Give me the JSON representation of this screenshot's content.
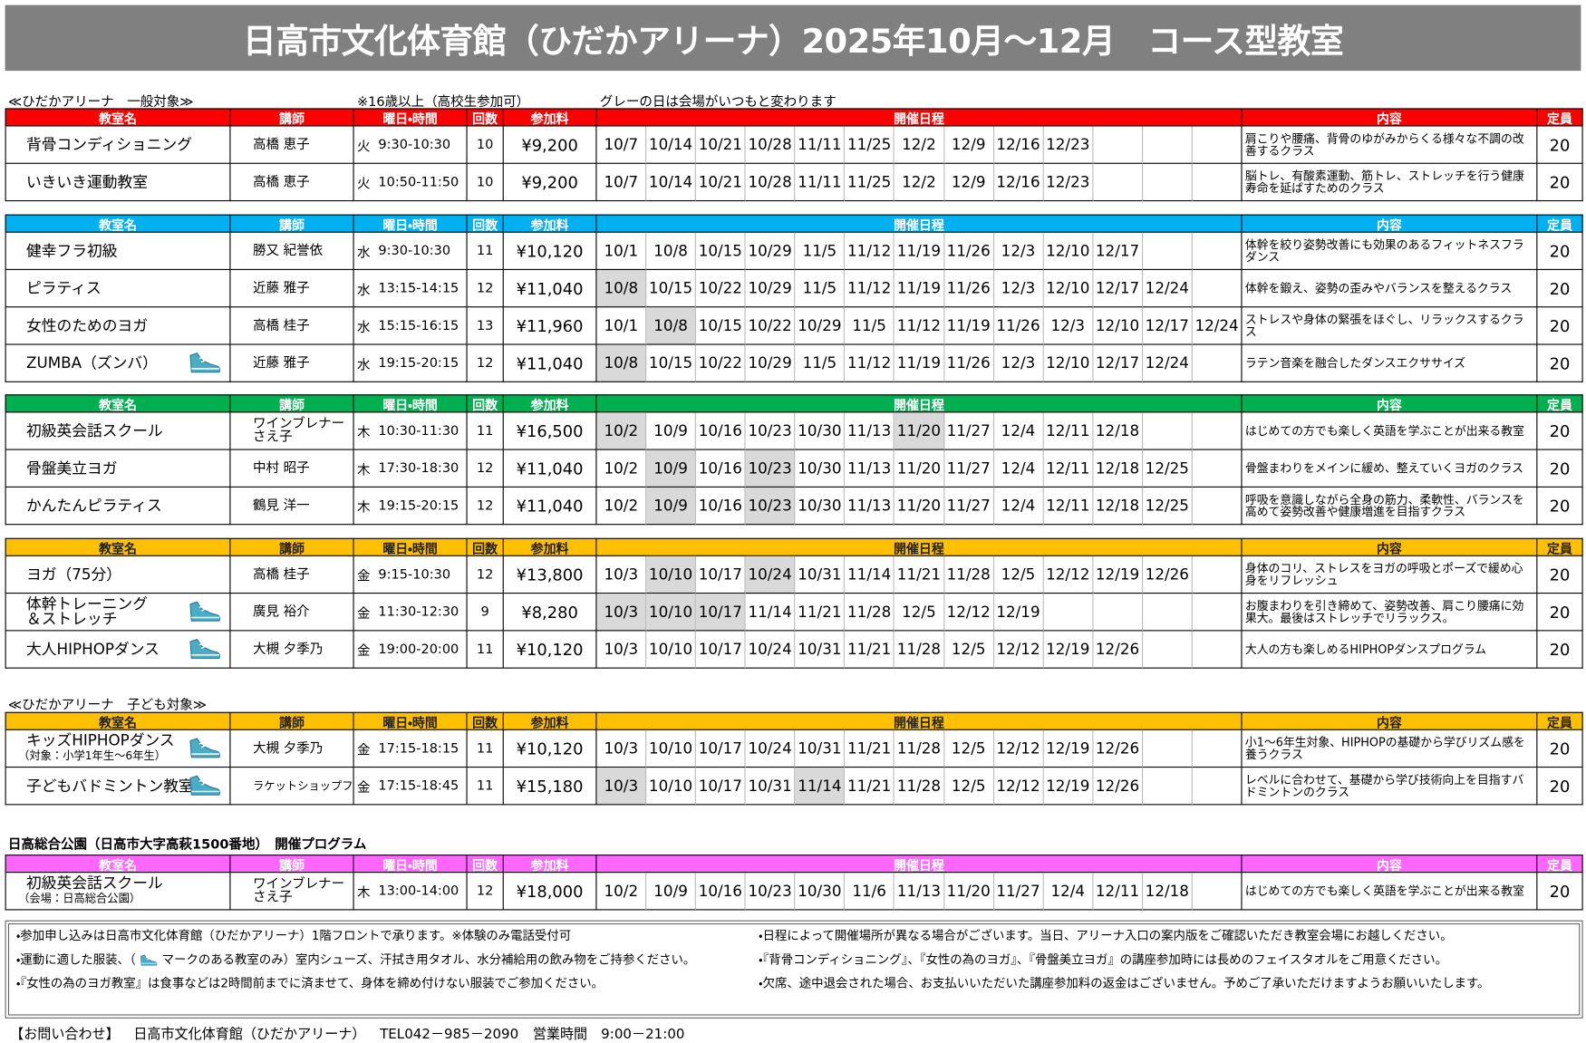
{
  "title": "日高市文化体育館（ひだかアリーナ）2025年10月～12月　コース型教室",
  "headers": [
    "教室名",
    "講師",
    "曜日・時間",
    "回数",
    "参加料",
    "開催日程",
    "内容",
    "定員"
  ],
  "top_label": {
    "text": "≪ひだかアリーナ　一般対象≫",
    "note1": "※16歳以上（高校生参加可）",
    "note2": "グレーの日は会場がいつもと変わります"
  },
  "sections": [
    {
      "color": "#ff0000",
      "rows": [
        {
          "name": "背骨コンディショニング",
          "instructor": "高橋 恵子",
          "day": "火",
          "time": "9:30-10:30",
          "count": 10,
          "fee": "¥9,200",
          "dates": [
            "10/7",
            "10/14",
            "10/21",
            "10/28",
            "11/11",
            "11/25",
            "12/2",
            "12/9",
            "12/16",
            "12/23"
          ],
          "gray": [],
          "content": "肩こりや腰痛、背骨のゆがみからくる様々な不調の改善するクラス",
          "capacity": 20
        },
        {
          "name": "いきいき運動教室",
          "instructor": "高橋 恵子",
          "day": "火",
          "time": "10:50-11:50",
          "count": 10,
          "fee": "¥9,200",
          "dates": [
            "10/7",
            "10/14",
            "10/21",
            "10/28",
            "11/11",
            "11/25",
            "12/2",
            "12/9",
            "12/16",
            "12/23"
          ],
          "gray": [],
          "content": "脳トレ、有酸素運動、筋トレ、ストレッチを行う健康寿命を延ばすためのクラス",
          "capacity": 20
        }
      ]
    },
    {
      "color": "#00b0f0",
      "rows": [
        {
          "name": "健幸フラ初級",
          "instructor": "勝又 紀誉依",
          "day": "水",
          "time": "9:30-10:30",
          "count": 11,
          "fee": "¥10,120",
          "dates": [
            "10/1",
            "10/8",
            "10/15",
            "10/29",
            "11/5",
            "11/12",
            "11/19",
            "11/26",
            "12/3",
            "12/10",
            "12/17"
          ],
          "gray": [],
          "content": "体幹を絞り姿勢改善にも効果のあるフィットネスフラダンス",
          "capacity": 20
        },
        {
          "name": "ピラティス",
          "instructor": "近藤 雅子",
          "day": "水",
          "time": "13:15-14:15",
          "count": 12,
          "fee": "¥11,040",
          "dates": [
            "10/8",
            "10/15",
            "10/22",
            "10/29",
            "11/5",
            "11/12",
            "11/19",
            "11/26",
            "12/3",
            "12/10",
            "12/17",
            "12/24"
          ],
          "gray": [
            0
          ],
          "content": "体幹を鍛え、姿勢の歪みやバランスを整えるクラス",
          "capacity": 20
        },
        {
          "name": "女性のためのヨガ",
          "instructor": "高橋 桂子",
          "day": "水",
          "time": "15:15-16:15",
          "count": 13,
          "fee": "¥11,960",
          "dates": [
            "10/1",
            "10/8",
            "10/15",
            "10/22",
            "10/29",
            "11/5",
            "11/12",
            "11/19",
            "11/26",
            "12/3",
            "12/10",
            "12/17",
            "12/24"
          ],
          "gray": [
            1
          ],
          "content": "ストレスや身体の緊張をほぐし、リラックスするクラス",
          "capacity": 20
        },
        {
          "name": "ZUMBA（ズンバ）",
          "shoes": true,
          "instructor": "近藤 雅子",
          "day": "水",
          "time": "19:15-20:15",
          "count": 12,
          "fee": "¥11,040",
          "dates": [
            "10/8",
            "10/15",
            "10/22",
            "10/29",
            "11/5",
            "11/12",
            "11/19",
            "11/26",
            "12/3",
            "12/10",
            "12/17",
            "12/24"
          ],
          "gray": [
            0
          ],
          "content": "ラテン音楽を融合したダンスエクササイズ",
          "capacity": 20
        }
      ]
    },
    {
      "color": "#00b050",
      "rows": [
        {
          "name": "初級英会話スクール",
          "instructor": [
            "ワインブレナー",
            "さえ子"
          ],
          "day": "木",
          "time": "10:30-11:30",
          "count": 11,
          "fee": "¥16,500",
          "dates": [
            "10/2",
            "10/9",
            "10/16",
            "10/23",
            "10/30",
            "11/13",
            "11/20",
            "11/27",
            "12/4",
            "12/11",
            "12/18"
          ],
          "gray": [
            0,
            6
          ],
          "content": "はじめての方でも楽しく英語を学ぶことが出来る教室",
          "capacity": 20
        },
        {
          "name": "骨盤美立ヨガ",
          "instructor": "中村 昭子",
          "day": "木",
          "time": "17:30-18:30",
          "count": 12,
          "fee": "¥11,040",
          "dates": [
            "10/2",
            "10/9",
            "10/16",
            "10/23",
            "10/30",
            "11/13",
            "11/20",
            "11/27",
            "12/4",
            "12/11",
            "12/18",
            "12/25"
          ],
          "gray": [
            1,
            3
          ],
          "content": "骨盤まわりをメインに緩め、整えていくヨガのクラス",
          "capacity": 20
        },
        {
          "name": "かんたんピラティス",
          "instructor": "鶴見 洋一",
          "day": "木",
          "time": "19:15-20:15",
          "count": 12,
          "fee": "¥11,040",
          "dates": [
            "10/2",
            "10/9",
            "10/16",
            "10/23",
            "10/30",
            "11/13",
            "11/20",
            "11/27",
            "12/4",
            "12/11",
            "12/18",
            "12/25"
          ],
          "gray": [
            1,
            3
          ],
          "content": "呼吸を意識しながら全身の筋力、柔軟性、バランスを高めて姿勢改善や健康増進を目指すクラス",
          "capacity": 20
        }
      ]
    },
    {
      "color": "#ffc000",
      "dark": true,
      "rows": [
        {
          "name": "ヨガ（75分）",
          "instructor": "高橋 桂子",
          "day": "金",
          "time": "9:15-10:30",
          "count": 12,
          "fee": "¥13,800",
          "dates": [
            "10/3",
            "10/10",
            "10/17",
            "10/24",
            "10/31",
            "11/14",
            "11/21",
            "11/28",
            "12/5",
            "12/12",
            "12/19",
            "12/26"
          ],
          "gray": [
            1,
            3
          ],
          "content": "身体のコリ、ストレスをヨガの呼吸とポーズで緩め心身をリフレッシュ",
          "capacity": 20
        },
        {
          "name": [
            "体幹トレーニング",
            "＆ストレッチ"
          ],
          "shoes": true,
          "instructor": "廣見 裕介",
          "day": "金",
          "time": "11:30-12:30",
          "count": 9,
          "fee": "¥8,280",
          "dates": [
            "10/3",
            "10/10",
            "10/17",
            "11/14",
            "11/21",
            "11/28",
            "12/5",
            "12/12",
            "12/19"
          ],
          "gray": [
            0,
            1,
            2
          ],
          "content": "お腹まわりを引き締めて、姿勢改善、肩こり腰痛に効果大。最後はストレッチでリラックス。",
          "capacity": 20
        },
        {
          "name": "大人HIPHOPダンス",
          "shoes": true,
          "instructor": "大槻 夕季乃",
          "day": "金",
          "time": "19:00-20:00",
          "count": 11,
          "fee": "¥10,120",
          "dates": [
            "10/3",
            "10/10",
            "10/17",
            "10/24",
            "10/31",
            "11/21",
            "11/28",
            "12/5",
            "12/12",
            "12/19",
            "12/26"
          ],
          "gray": [],
          "content": "大人の方も楽しめるHIPHOPダンスプログラム",
          "capacity": 20
        }
      ]
    },
    {
      "label": "≪ひだかアリーナ　子ども対象≫",
      "color": "#ffc000",
      "dark": true,
      "rows": [
        {
          "name": "キッズHIPHOPダンス",
          "name_sub": "（対象：小学1年生～6年生）",
          "shoes": true,
          "instructor": "大槻 夕季乃",
          "day": "金",
          "time": "17:15-18:15",
          "count": 11,
          "fee": "¥10,120",
          "dates": [
            "10/3",
            "10/10",
            "10/17",
            "10/24",
            "10/31",
            "11/21",
            "11/28",
            "12/5",
            "12/12",
            "12/19",
            "12/26"
          ],
          "gray": [],
          "content": "小1～6年生対象、HIPHOPの基礎から学びリズム感を養うクラス",
          "capacity": 20
        },
        {
          "name": "子どもバドミントン教室",
          "shoes": true,
          "instructor": "ラケットショップフジ",
          "day": "金",
          "time": "17:15-18:45",
          "count": 11,
          "fee": "¥15,180",
          "dates": [
            "10/3",
            "10/10",
            "10/17",
            "10/31",
            "11/14",
            "11/21",
            "11/28",
            "12/5",
            "12/12",
            "12/19",
            "12/26"
          ],
          "gray": [
            0,
            4
          ],
          "content": "レベルに合わせて、基礎から学び技術向上を目指すバドミントンのクラス",
          "capacity": 20
        }
      ]
    },
    {
      "label": "日高総合公園（日高市大字高萩1500番地）　開催プログラム",
      "color": "#ff66ff",
      "rows": [
        {
          "name": "初級英会話スクール",
          "name_sub": "（会場：日高総合公園）",
          "instructor": [
            "ワインブレナー",
            "さえ子"
          ],
          "day": "木",
          "time": "13:00-14:00",
          "count": 12,
          "fee": "¥18,000",
          "dates": [
            "10/2",
            "10/9",
            "10/16",
            "10/23",
            "10/30",
            "11/6",
            "11/13",
            "11/20",
            "11/27",
            "12/4",
            "12/11",
            "12/18"
          ],
          "gray": [],
          "content": "はじめての方でも楽しく英語を学ぶことが出来る教室",
          "capacity": 20
        }
      ]
    }
  ],
  "notes_left": [
    "・参加申し込みは日高市文化体育館（ひだかアリーナ）1階フロントで承ります。※体験のみ電話受付可",
    [
      "・運動に適した服装、（",
      "マークのある教室のみ）室内シューズ、汗拭き用タオル、水分補給用の飲み物をご持参ください。"
    ],
    "・『女性の為のヨガ教室』は食事などは2時間前までに済ませて、身体を締め付けない服装でご参加ください。"
  ],
  "notes_right": [
    "・日程によって開催場所が異なる場合がございます。当日、アリーナ入口の案内版をご確認いただき教室会場にお越しください。",
    "・『背骨コンディショニング』、『女性の為のヨガ』、『骨盤美立ヨガ』の講座参加時には長めのフェイスタオルをご用意ください。",
    "・欠席、途中退会された場合、お支払いいただいた講座参加料の返金はございません。予めご了承いただけますようお願いいたします。"
  ],
  "contact": [
    "【お問い合わせ】",
    "日高市文化体育館（ひだかアリーナ）",
    "TEL042－985－2090",
    "営業時間　9:00－21:00"
  ]
}
